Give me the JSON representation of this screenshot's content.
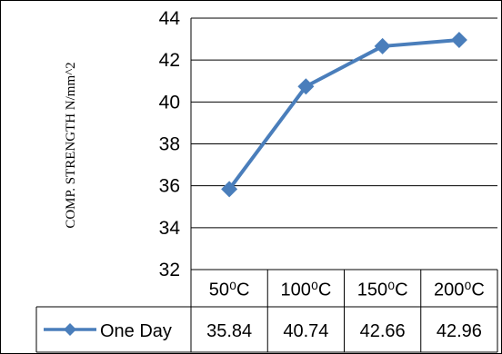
{
  "chart_data": {
    "type": "line",
    "title": "",
    "xlabel": "",
    "ylabel": "COMP. STRENGTH   N/mm^2",
    "categories": [
      "50⁰C",
      "100⁰C",
      "150⁰C",
      "200⁰C"
    ],
    "series": [
      {
        "name": "One Day",
        "values": [
          35.84,
          40.74,
          42.66,
          42.96
        ],
        "color": "#4a7ebb",
        "marker": "diamond"
      }
    ],
    "ylim": [
      32,
      44
    ],
    "yticks": [
      32,
      34,
      36,
      38,
      40,
      42,
      44
    ],
    "grid": "horizontal",
    "data_table": true,
    "value_labels": [
      "35.84",
      "40.74",
      "42.66",
      "42.96"
    ]
  }
}
